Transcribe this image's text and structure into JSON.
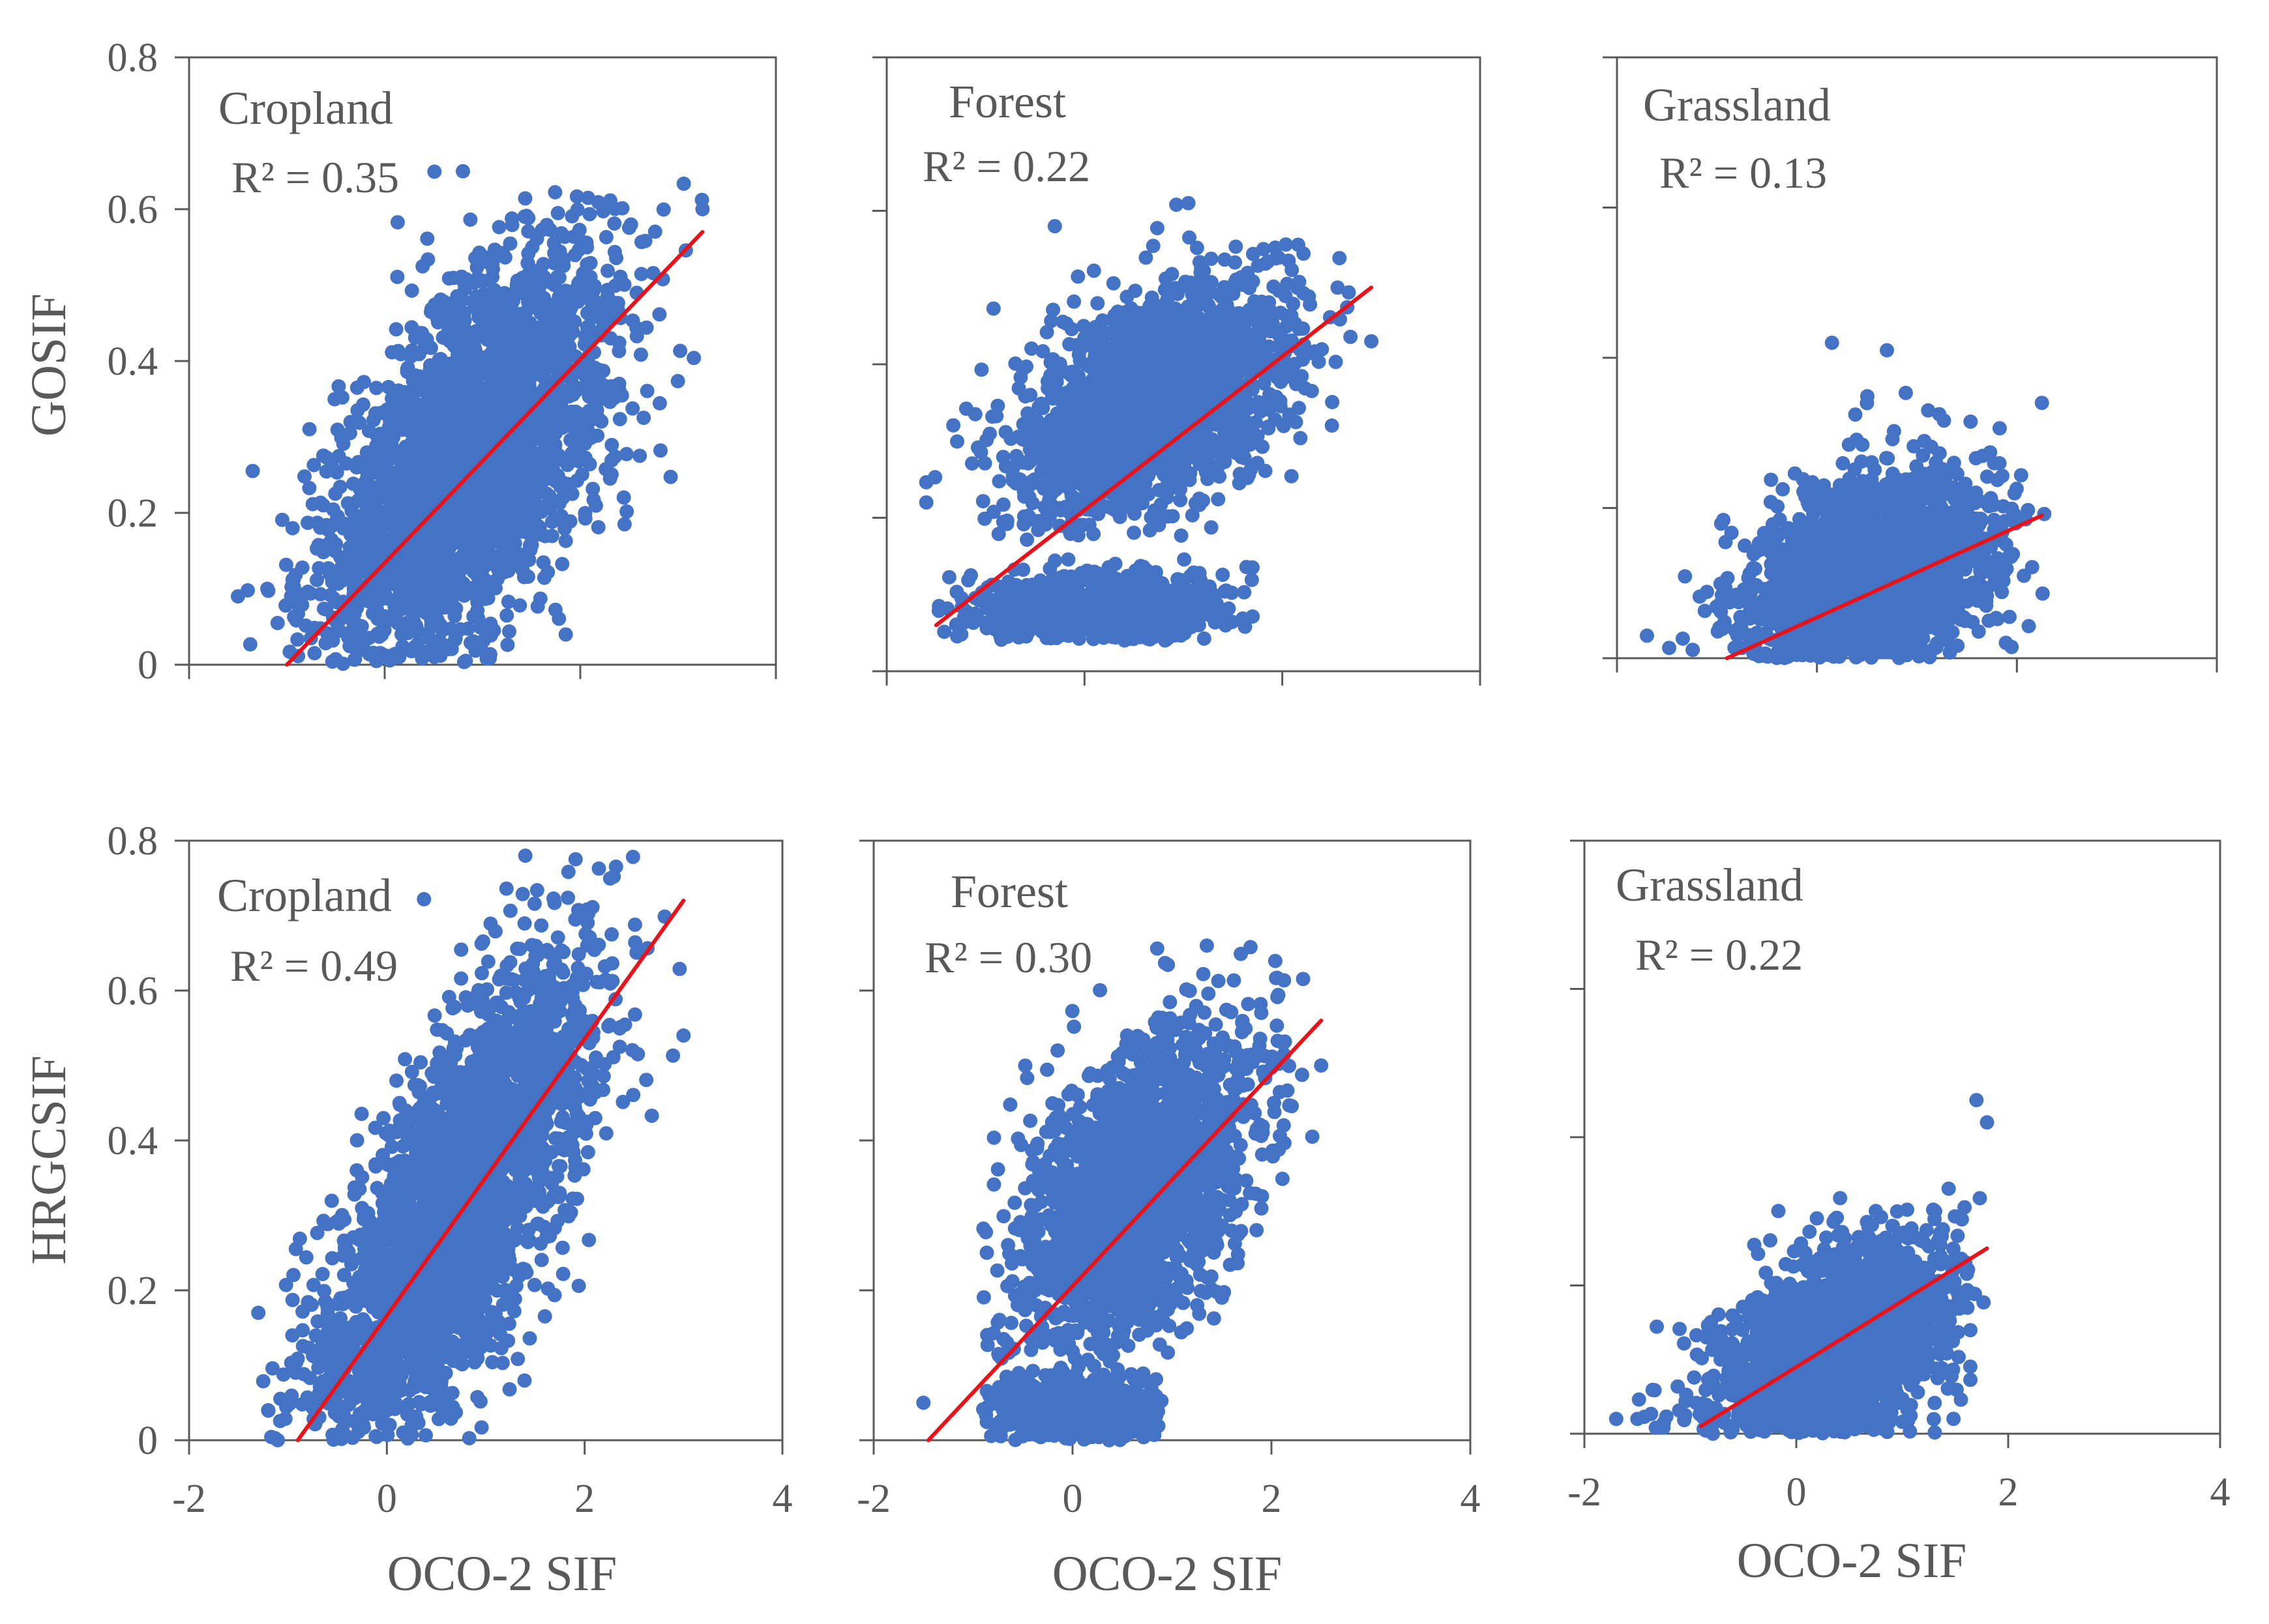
{
  "figure": {
    "x_axis_title": "OCO-2 SIF",
    "colors": {
      "points": "#4472C4",
      "fit_line": "#E8121B",
      "axis": "#595959",
      "text": "#595959"
    }
  },
  "chart_data": [
    {
      "type": "scatter",
      "row": "top",
      "title": "Cropland",
      "r2_label": "R² = 0.35",
      "r2_value": 0.35,
      "ylabel": "GOSIF",
      "xlabel": "",
      "xlim": [
        -2,
        4
      ],
      "ylim": [
        0,
        0.8
      ],
      "xticks": [
        "",
        "",
        "",
        ""
      ],
      "yticks": [
        "0",
        "0.2",
        "0.4",
        "0.6",
        "0.8"
      ],
      "fit_line": {
        "x": [
          -1.0,
          3.25
        ],
        "y": [
          0.0,
          0.57
        ]
      },
      "cloud": {
        "n": 2600,
        "xmean": 0.85,
        "xsd": 0.75,
        "ymean": 0.27,
        "ysd": 0.14,
        "corr": 0.6,
        "xmin": -1.5,
        "xmax": 3.3,
        "ymin": 0.0,
        "ymax": 0.66
      },
      "outliers": [
        {
          "x": 3.25,
          "y": 0.6
        },
        {
          "x": 0.8,
          "y": 0.65
        },
        {
          "x": -1.5,
          "y": 0.09
        },
        {
          "x": -1.2,
          "y": 0.1
        }
      ]
    },
    {
      "type": "scatter",
      "row": "top",
      "title": "Forest",
      "r2_label": "R² = 0.22",
      "r2_value": 0.22,
      "ylabel": "",
      "xlabel": "",
      "xlim": [
        -2,
        4
      ],
      "ylim": [
        0,
        0.8
      ],
      "xticks": [
        "",
        "",
        "",
        ""
      ],
      "yticks": [
        "",
        "",
        "",
        "",
        ""
      ],
      "fit_line": {
        "x": [
          -1.5,
          2.9
        ],
        "y": [
          0.06,
          0.5
        ]
      },
      "cloud": {
        "n": 1800,
        "xmean": 0.7,
        "xsd": 0.7,
        "ymean": 0.35,
        "ysd": 0.08,
        "corr": 0.45,
        "xmin": -1.6,
        "xmax": 2.9,
        "ymin": 0.17,
        "ymax": 0.61
      },
      "cloud2": {
        "n": 700,
        "xmean": 0.2,
        "xsd": 0.65,
        "ymean": 0.08,
        "ysd": 0.025,
        "corr": 0.0,
        "xmin": -1.5,
        "xmax": 1.7,
        "ymin": 0.04,
        "ymax": 0.15
      },
      "outliers": [
        {
          "x": 2.9,
          "y": 0.43
        },
        {
          "x": -1.6,
          "y": 0.22
        },
        {
          "x": -0.3,
          "y": 0.58
        },
        {
          "x": 1.05,
          "y": 0.61
        }
      ]
    },
    {
      "type": "scatter",
      "row": "top",
      "title": "Grassland",
      "r2_label": "R² = 0.13",
      "r2_value": 0.13,
      "ylabel": "",
      "xlabel": "",
      "xlim": [
        -2,
        4
      ],
      "ylim": [
        0,
        0.8
      ],
      "xticks": [
        "",
        "",
        "",
        ""
      ],
      "yticks": [
        "",
        "",
        "",
        "",
        ""
      ],
      "fit_line": {
        "x": [
          -0.9,
          2.25
        ],
        "y": [
          0.0,
          0.19
        ]
      },
      "cloud": {
        "n": 2000,
        "xmean": 0.5,
        "xsd": 0.6,
        "ymean": 0.1,
        "ysd": 0.07,
        "corr": 0.35,
        "xmin": -1.7,
        "xmax": 2.3,
        "ymin": 0.0,
        "ymax": 0.42
      },
      "outliers": [
        {
          "x": 2.25,
          "y": 0.34
        },
        {
          "x": 0.15,
          "y": 0.42
        },
        {
          "x": -1.7,
          "y": 0.03
        },
        {
          "x": 0.7,
          "y": 0.41
        }
      ]
    },
    {
      "type": "scatter",
      "row": "bottom",
      "title": "Cropland",
      "r2_label": "R² = 0.49",
      "r2_value": 0.49,
      "ylabel": "HRGCSIF",
      "xlabel": "OCO-2 SIF",
      "xlim": [
        -2,
        4
      ],
      "ylim": [
        0,
        0.8
      ],
      "xticks": [
        "-2",
        "0",
        "2",
        "4"
      ],
      "yticks": [
        "0",
        "0.2",
        "0.4",
        "0.6",
        "0.8"
      ],
      "fit_line": {
        "x": [
          -0.9,
          3.0
        ],
        "y": [
          0.0,
          0.72
        ]
      },
      "cloud": {
        "n": 2600,
        "xmean": 0.7,
        "xsd": 0.7,
        "ymean": 0.3,
        "ysd": 0.17,
        "corr": 0.72,
        "xmin": -1.4,
        "xmax": 3.0,
        "ymin": 0.0,
        "ymax": 0.78
      },
      "outliers": [
        {
          "x": 3.0,
          "y": 0.54
        },
        {
          "x": 1.4,
          "y": 0.78
        },
        {
          "x": -1.3,
          "y": 0.17
        },
        {
          "x": -1.2,
          "y": 0.04
        }
      ]
    },
    {
      "type": "scatter",
      "row": "bottom",
      "title": "Forest",
      "r2_label": "R² = 0.30",
      "r2_value": 0.3,
      "ylabel": "",
      "xlabel": "OCO-2 SIF",
      "xlim": [
        -2,
        4
      ],
      "ylim": [
        0,
        0.8
      ],
      "xticks": [
        "-2",
        "0",
        "2",
        "4"
      ],
      "yticks": [
        "",
        "",
        "",
        "",
        ""
      ],
      "fit_line": {
        "x": [
          -1.45,
          2.5
        ],
        "y": [
          0.0,
          0.56
        ]
      },
      "cloud": {
        "n": 2000,
        "xmean": 0.6,
        "xsd": 0.6,
        "ymean": 0.33,
        "ysd": 0.11,
        "corr": 0.5,
        "xmin": -0.9,
        "xmax": 2.5,
        "ymin": 0.1,
        "ymax": 0.66
      },
      "cloud2": {
        "n": 600,
        "xmean": 0.0,
        "xsd": 0.45,
        "ymean": 0.04,
        "ysd": 0.025,
        "corr": 0.0,
        "xmin": -0.9,
        "xmax": 0.9,
        "ymin": 0.0,
        "ymax": 0.1
      },
      "outliers": [
        {
          "x": -1.5,
          "y": 0.05
        },
        {
          "x": 2.5,
          "y": 0.5
        },
        {
          "x": 1.35,
          "y": 0.66
        },
        {
          "x": -0.15,
          "y": 0.52
        }
      ]
    },
    {
      "type": "scatter",
      "row": "bottom",
      "title": "Grassland",
      "r2_label": "R² = 0.22",
      "r2_value": 0.22,
      "ylabel": "",
      "xlabel": "OCO-2 SIF",
      "xlim": [
        -2,
        4
      ],
      "ylim": [
        0,
        0.8
      ],
      "xticks": [
        "-2",
        "0",
        "2",
        "4"
      ],
      "yticks": [
        "",
        "",
        "",
        "",
        ""
      ],
      "fit_line": {
        "x": [
          -0.9,
          1.8
        ],
        "y": [
          0.01,
          0.25
        ]
      },
      "cloud": {
        "n": 2000,
        "xmean": 0.3,
        "xsd": 0.55,
        "ymean": 0.1,
        "ysd": 0.075,
        "corr": 0.45,
        "xmin": -1.7,
        "xmax": 1.8,
        "ymin": 0.0,
        "ymax": 0.45
      },
      "outliers": [
        {
          "x": 1.8,
          "y": 0.42
        },
        {
          "x": 1.7,
          "y": 0.45
        },
        {
          "x": -1.5,
          "y": 0.02
        },
        {
          "x": -1.7,
          "y": 0.02
        }
      ]
    }
  ]
}
